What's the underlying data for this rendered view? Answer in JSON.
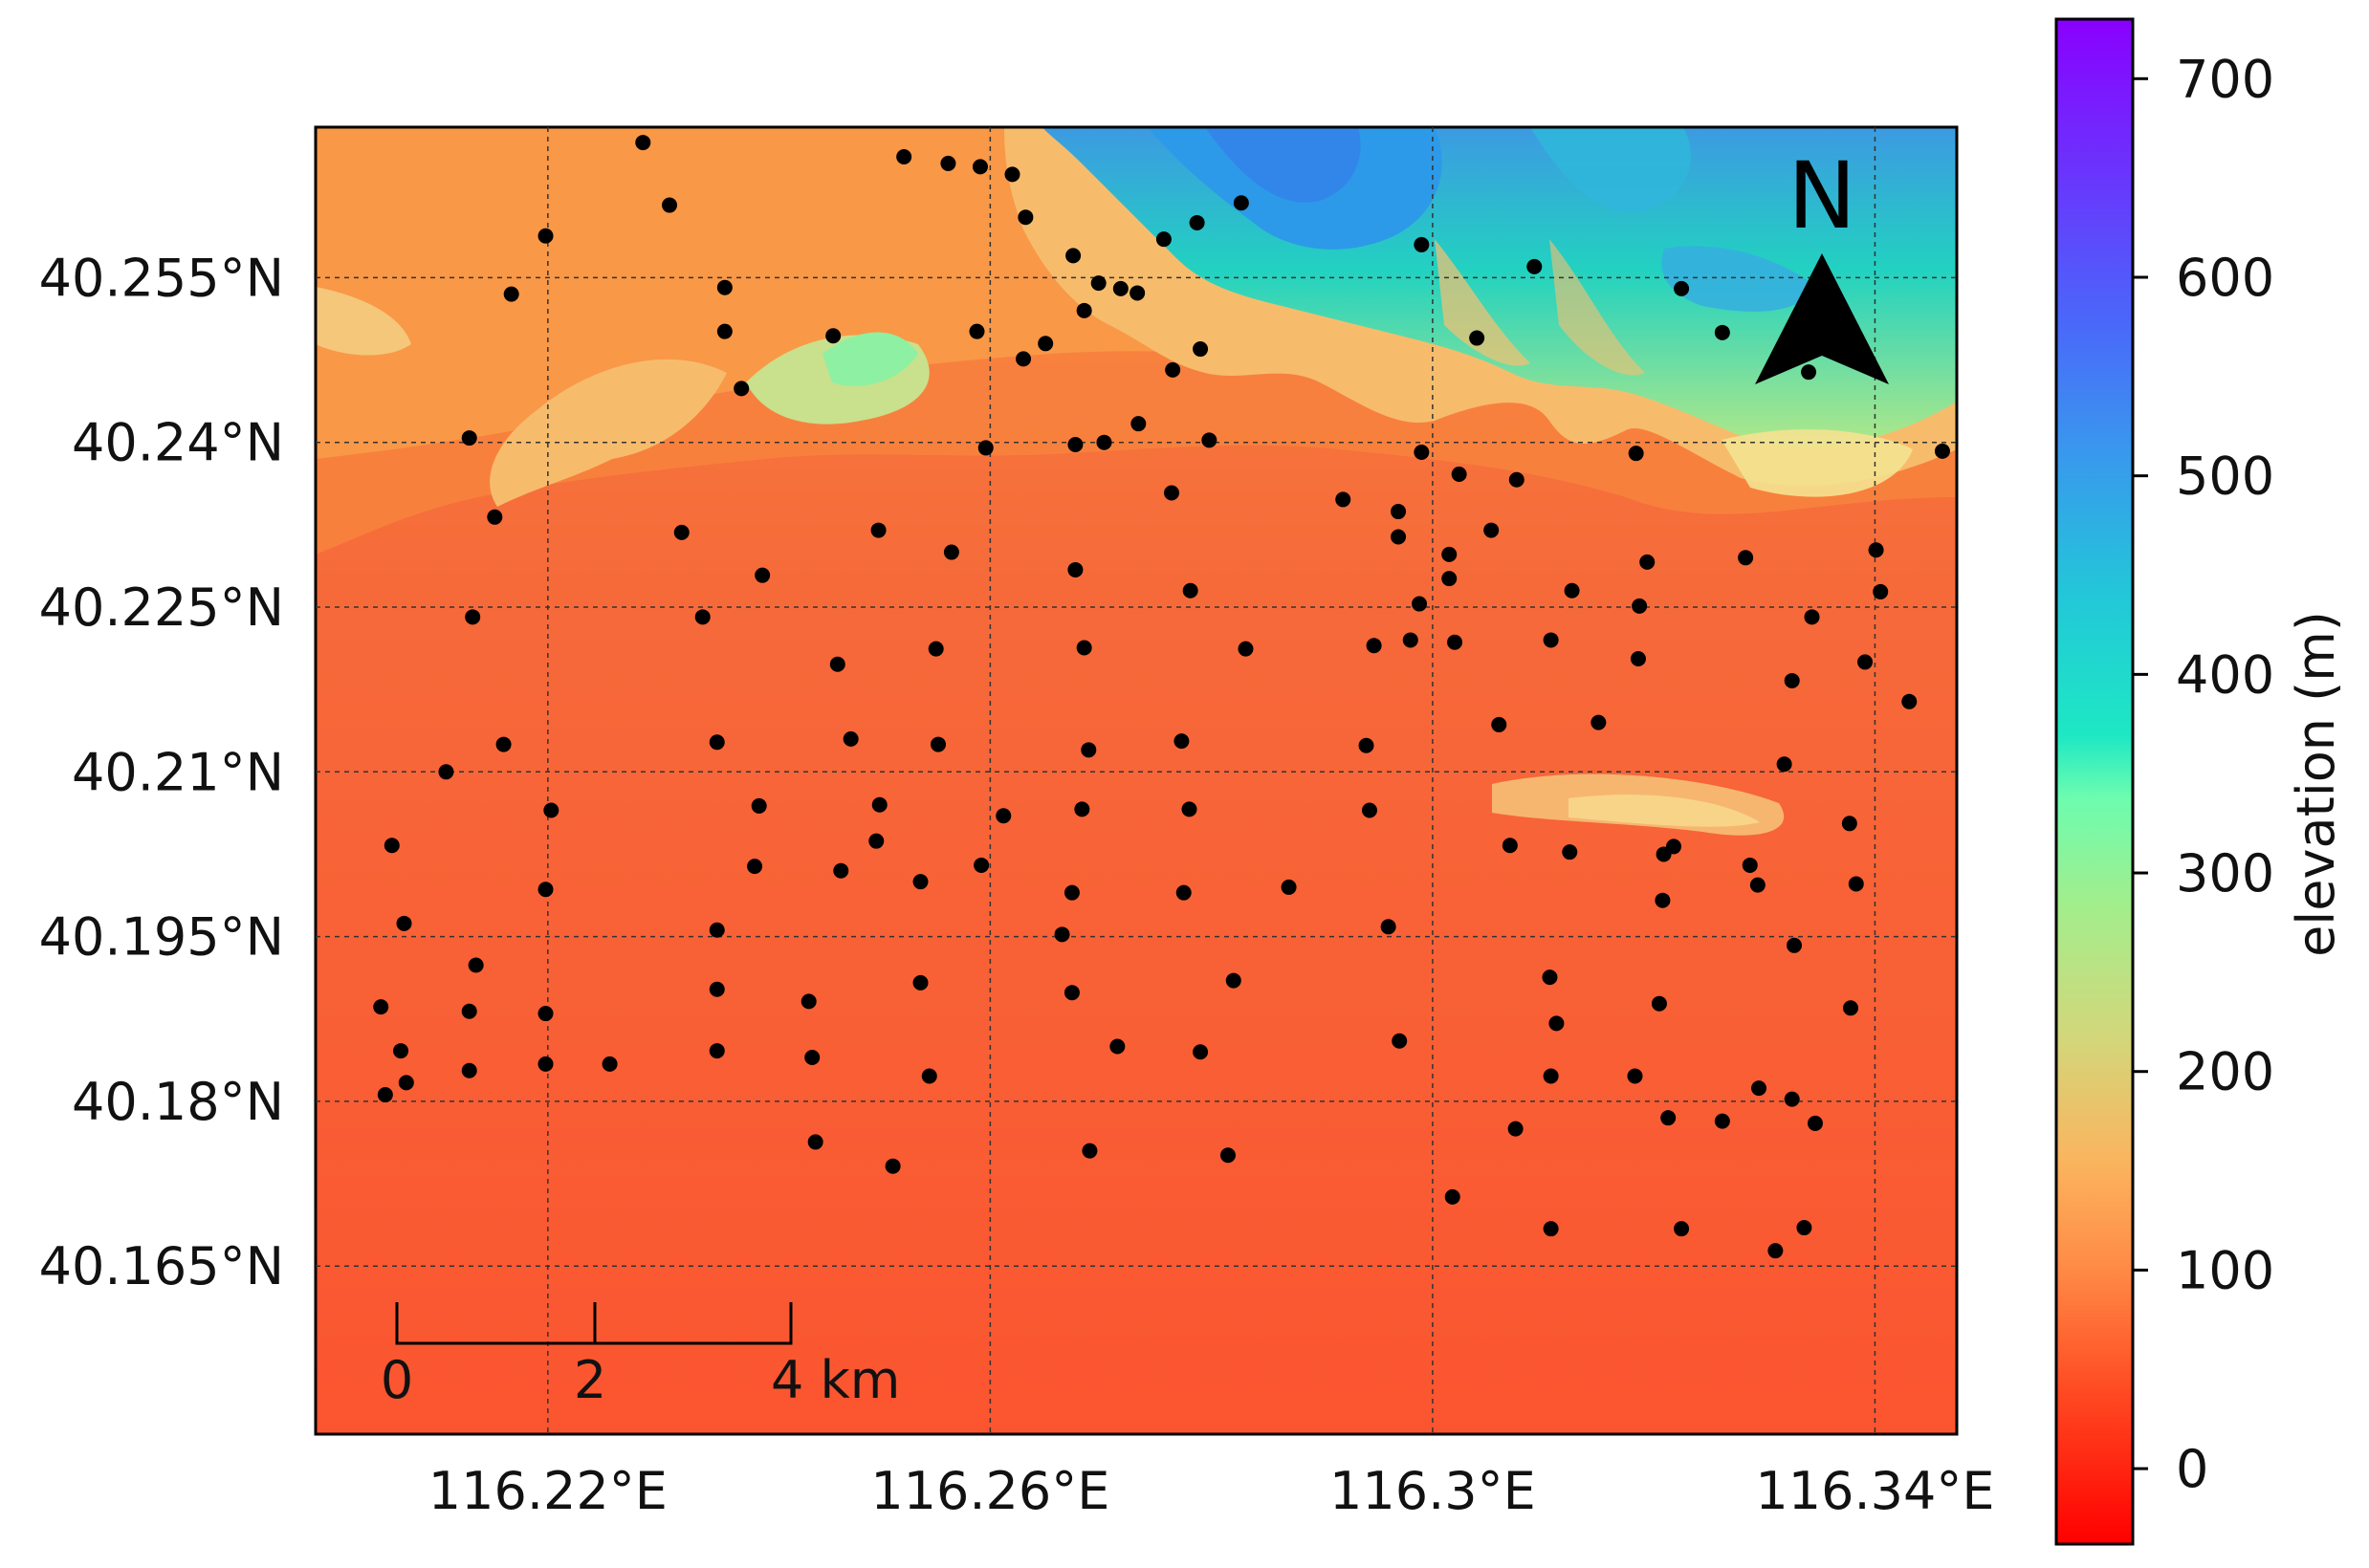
{
  "map": {
    "type": "scatter",
    "x_ticks": [
      "116.22°E",
      "116.26°E",
      "116.3°E",
      "116.34°E"
    ],
    "x_tick_values": [
      116.22,
      116.26,
      116.3,
      116.34
    ],
    "y_ticks": [
      "40.255°N",
      "40.24°N",
      "40.225°N",
      "40.21°N",
      "40.195°N",
      "40.18°N",
      "40.165°N"
    ],
    "y_tick_values": [
      40.255,
      40.24,
      40.225,
      40.21,
      40.195,
      40.18,
      40.165
    ],
    "xlim": [
      116.199,
      116.3474
    ],
    "ylim": [
      40.1497,
      40.2687
    ],
    "grid": true,
    "north_arrow": {
      "label": "N",
      "icon": "north-arrow-icon"
    },
    "scale_bar": {
      "ticks": [
        "0",
        "2"
      ],
      "end_label": "4 km",
      "values_km": [
        0,
        2,
        4
      ]
    },
    "colorbar": {
      "label": "elevation (m)",
      "ticks": [
        "0",
        "100",
        "200",
        "300",
        "400",
        "500",
        "600",
        "700"
      ],
      "tick_values": [
        0,
        100,
        200,
        300,
        400,
        500,
        600,
        700
      ],
      "range": [
        -38,
        730
      ],
      "colormap": "rainbow (red=low, violet=high)"
    },
    "sites": [
      [
        116.2286,
        40.2673
      ],
      [
        116.231,
        40.2616
      ],
      [
        116.2198,
        40.2588
      ],
      [
        116.2167,
        40.2535
      ],
      [
        116.236,
        40.2541
      ],
      [
        116.236,
        40.2501
      ],
      [
        116.2375,
        40.2449
      ],
      [
        116.2129,
        40.2404
      ],
      [
        116.2152,
        40.2332
      ],
      [
        116.2321,
        40.2318
      ],
      [
        116.2394,
        40.2279
      ],
      [
        116.2132,
        40.2241
      ],
      [
        116.234,
        40.2241
      ],
      [
        116.216,
        40.2125
      ],
      [
        116.2108,
        40.21
      ],
      [
        116.2059,
        40.2033
      ],
      [
        116.207,
        40.1962
      ],
      [
        116.2135,
        40.1924
      ],
      [
        116.2049,
        40.1886
      ],
      [
        116.2129,
        40.1882
      ],
      [
        116.2067,
        40.1846
      ],
      [
        116.2129,
        40.1828
      ],
      [
        116.2072,
        40.1817
      ],
      [
        116.2053,
        40.1806
      ],
      [
        116.2203,
        40.2065
      ],
      [
        116.2198,
        40.1993
      ],
      [
        116.2198,
        40.188
      ],
      [
        116.2198,
        40.1834
      ],
      [
        116.2256,
        40.1834
      ],
      [
        116.2353,
        40.2127
      ],
      [
        116.2391,
        40.2069
      ],
      [
        116.2387,
        40.2014
      ],
      [
        116.2353,
        40.1956
      ],
      [
        116.2353,
        40.1902
      ],
      [
        116.2353,
        40.1846
      ],
      [
        116.2436,
        40.1891
      ],
      [
        116.2439,
        40.184
      ],
      [
        116.2442,
        40.1763
      ],
      [
        116.2465,
        40.201
      ],
      [
        116.2462,
        40.2198
      ],
      [
        116.2458,
        40.2497
      ],
      [
        116.2474,
        40.213
      ],
      [
        116.2497,
        40.2037
      ],
      [
        116.25,
        40.207
      ],
      [
        116.2499,
        40.232
      ],
      [
        116.2512,
        40.1741
      ],
      [
        116.2522,
        40.266
      ],
      [
        116.2562,
        40.2654
      ],
      [
        116.2591,
        40.2651
      ],
      [
        116.262,
        40.2644
      ],
      [
        116.2588,
        40.2501
      ],
      [
        116.2565,
        40.23
      ],
      [
        116.2596,
        40.2395
      ],
      [
        116.2551,
        40.2212
      ],
      [
        116.2553,
        40.2125
      ],
      [
        116.2537,
        40.2
      ],
      [
        116.2537,
        40.1908
      ],
      [
        116.2545,
        40.1823
      ],
      [
        116.2592,
        40.2015
      ],
      [
        116.2612,
        40.206
      ],
      [
        116.2632,
        40.2605
      ],
      [
        116.263,
        40.2476
      ],
      [
        116.265,
        40.249
      ],
      [
        116.2675,
        40.257
      ],
      [
        116.2677,
        40.2398
      ],
      [
        116.2677,
        40.2284
      ],
      [
        116.2685,
        40.252
      ],
      [
        116.2685,
        40.2213
      ],
      [
        116.2689,
        40.212
      ],
      [
        116.2683,
        40.2066
      ],
      [
        116.2674,
        40.199
      ],
      [
        116.2665,
        40.1952
      ],
      [
        116.2674,
        40.1899
      ],
      [
        116.269,
        40.1755
      ],
      [
        116.2698,
        40.2545
      ],
      [
        116.2703,
        40.24
      ],
      [
        116.2718,
        40.254
      ],
      [
        116.2733,
        40.2536
      ],
      [
        116.2715,
        40.185
      ],
      [
        116.2734,
        40.2417
      ],
      [
        116.2757,
        40.2585
      ],
      [
        116.2765,
        40.2466
      ],
      [
        116.2764,
        40.2354
      ],
      [
        116.2781,
        40.2265
      ],
      [
        116.2787,
        40.26
      ],
      [
        116.279,
        40.2485
      ],
      [
        116.2798,
        40.2402
      ],
      [
        116.2773,
        40.2128
      ],
      [
        116.278,
        40.2066
      ],
      [
        116.2775,
        40.199
      ],
      [
        116.279,
        40.1845
      ],
      [
        116.2827,
        40.2618
      ],
      [
        116.2831,
        40.2212
      ],
      [
        116.282,
        40.191
      ],
      [
        116.2815,
        40.1751
      ],
      [
        116.287,
        40.1995
      ],
      [
        116.2919,
        40.2348
      ],
      [
        116.2943,
        40.2065
      ],
      [
        116.294,
        40.2124
      ],
      [
        116.2947,
        40.2215
      ],
      [
        116.2969,
        40.2337
      ],
      [
        116.2969,
        40.2314
      ],
      [
        116.296,
        40.1959
      ],
      [
        116.299,
        40.258
      ],
      [
        116.298,
        40.222
      ],
      [
        116.2988,
        40.2253
      ],
      [
        116.297,
        40.1855
      ],
      [
        116.299,
        40.2391
      ],
      [
        116.3015,
        40.2298
      ],
      [
        116.3015,
        40.2276
      ],
      [
        116.3024,
        40.2371
      ],
      [
        116.302,
        40.2218
      ],
      [
        116.3018,
        40.1713
      ],
      [
        116.304,
        40.2495
      ],
      [
        116.3053,
        40.232
      ],
      [
        116.306,
        40.2143
      ],
      [
        116.3076,
        40.2366
      ],
      [
        116.307,
        40.2033
      ],
      [
        116.3075,
        40.1775
      ],
      [
        116.3092,
        40.256
      ],
      [
        116.3107,
        40.222
      ],
      [
        116.3106,
        40.1913
      ],
      [
        116.3112,
        40.1871
      ],
      [
        116.3107,
        40.1823
      ],
      [
        116.3107,
        40.1684
      ],
      [
        116.3126,
        40.2265
      ],
      [
        116.3124,
        40.2027
      ],
      [
        116.315,
        40.2145
      ],
      [
        116.3184,
        40.239
      ],
      [
        116.3187,
        40.2251
      ],
      [
        116.3186,
        40.2203
      ],
      [
        116.3183,
        40.1823
      ],
      [
        116.3194,
        40.2291
      ],
      [
        116.3209,
        40.2025
      ],
      [
        116.3208,
        40.1983
      ],
      [
        116.3205,
        40.1889
      ],
      [
        116.3213,
        40.1785
      ],
      [
        116.3218,
        40.2032
      ],
      [
        116.3225,
        40.1684
      ],
      [
        116.3225,
        40.254
      ],
      [
        116.3262,
        40.25
      ],
      [
        116.3262,
        40.1782
      ],
      [
        116.3283,
        40.2295
      ],
      [
        116.3287,
        40.2015
      ],
      [
        116.3294,
        40.1997
      ],
      [
        116.3295,
        40.1812
      ],
      [
        116.331,
        40.1664
      ],
      [
        116.3318,
        40.2107
      ],
      [
        116.3325,
        40.2183
      ],
      [
        116.3325,
        40.1802
      ],
      [
        116.3327,
        40.1942
      ],
      [
        116.3336,
        40.1685
      ],
      [
        116.334,
        40.2464
      ],
      [
        116.3343,
        40.2241
      ],
      [
        116.3346,
        40.178
      ],
      [
        116.3377,
        40.2053
      ],
      [
        116.3378,
        40.1885
      ],
      [
        116.3383,
        40.1998
      ],
      [
        116.3391,
        40.22
      ],
      [
        116.3401,
        40.2302
      ],
      [
        116.3405,
        40.2264
      ],
      [
        116.3431,
        40.2164
      ],
      [
        116.3461,
        40.2392
      ]
    ]
  }
}
